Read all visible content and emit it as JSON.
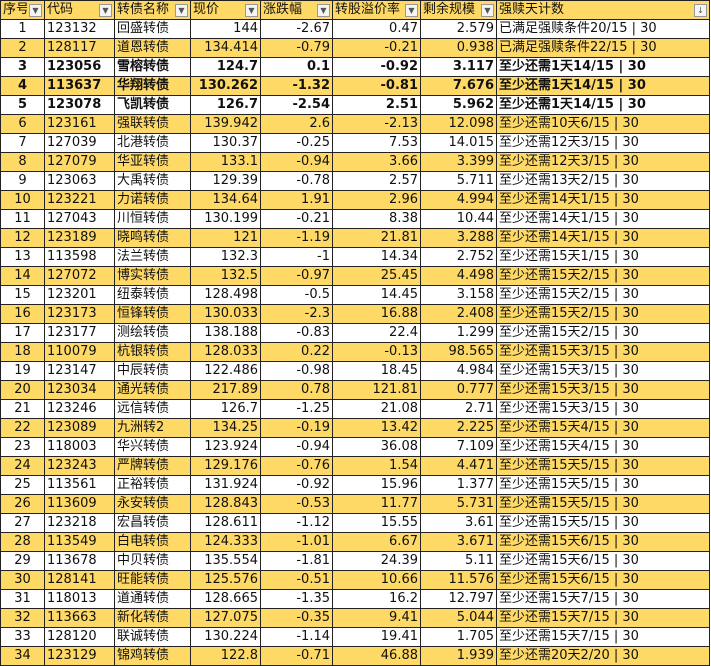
{
  "colors": {
    "header_bg": "#FFD966",
    "alt_row_bg": "#FFD966"
  },
  "headers": [
    "序号",
    "代码",
    "转债名称",
    "现价",
    "涨跌幅",
    "转股溢价率",
    "剩余规模",
    "强赎天计数"
  ],
  "filter_icons": [
    "dropdown-icon",
    "dropdown-icon",
    "dropdown-icon",
    "dropdown-icon",
    "dropdown-icon",
    "dropdown-icon",
    "dropdown-icon",
    "sort-filter-icon"
  ],
  "bold_rows": [
    3,
    4,
    5
  ],
  "rows": [
    [
      "1",
      "123132",
      "回盛转债",
      "144",
      "-2.67",
      "0.47",
      "2.579",
      "已满足强赎条件20/15 | 30"
    ],
    [
      "2",
      "128117",
      "道恩转债",
      "134.414",
      "-0.79",
      "-0.21",
      "0.938",
      "已满足强赎条件22/15 | 30"
    ],
    [
      "3",
      "123056",
      "雪榕转债",
      "124.7",
      "0.1",
      "-0.92",
      "3.117",
      "至少还需1天14/15 | 30"
    ],
    [
      "4",
      "113637",
      "华翔转债",
      "130.262",
      "-1.32",
      "-0.81",
      "7.676",
      "至少还需1天14/15 | 30"
    ],
    [
      "5",
      "123078",
      "飞凯转债",
      "126.7",
      "-2.54",
      "2.51",
      "5.962",
      "至少还需1天14/15 | 30"
    ],
    [
      "6",
      "123161",
      "强联转债",
      "139.942",
      "2.6",
      "-2.13",
      "12.098",
      "至少还需10天6/15 | 30"
    ],
    [
      "7",
      "127039",
      "北港转债",
      "130.37",
      "-0.25",
      "7.53",
      "14.015",
      "至少还需12天3/15 | 30"
    ],
    [
      "8",
      "127079",
      "华亚转债",
      "133.1",
      "-0.94",
      "3.66",
      "3.399",
      "至少还需12天3/15 | 30"
    ],
    [
      "9",
      "123063",
      "大禹转债",
      "129.39",
      "-0.78",
      "2.57",
      "5.711",
      "至少还需13天2/15 | 30"
    ],
    [
      "10",
      "123221",
      "力诺转债",
      "134.64",
      "1.91",
      "2.96",
      "4.994",
      "至少还需14天1/15 | 30"
    ],
    [
      "11",
      "127043",
      "川恒转债",
      "130.199",
      "-0.21",
      "8.38",
      "10.44",
      "至少还需14天1/15 | 30"
    ],
    [
      "12",
      "123189",
      "晓鸣转债",
      "121",
      "-1.19",
      "21.81",
      "3.288",
      "至少还需14天1/15 | 30"
    ],
    [
      "13",
      "113598",
      "法兰转债",
      "132.3",
      "-1",
      "14.34",
      "2.752",
      "至少还需15天1/15 | 30"
    ],
    [
      "14",
      "127072",
      "博实转债",
      "132.5",
      "-0.97",
      "25.45",
      "4.498",
      "至少还需15天2/15 | 30"
    ],
    [
      "15",
      "123201",
      "纽泰转债",
      "128.498",
      "-0.5",
      "14.45",
      "3.158",
      "至少还需15天2/15 | 30"
    ],
    [
      "16",
      "123173",
      "恒锋转债",
      "130.033",
      "-2.3",
      "16.88",
      "2.408",
      "至少还需15天2/15 | 30"
    ],
    [
      "17",
      "123177",
      "测绘转债",
      "138.188",
      "-0.83",
      "22.4",
      "1.299",
      "至少还需15天2/15 | 30"
    ],
    [
      "18",
      "110079",
      "杭银转债",
      "128.033",
      "0.22",
      "-0.13",
      "98.565",
      "至少还需15天3/15 | 30"
    ],
    [
      "19",
      "123147",
      "中辰转债",
      "122.486",
      "-0.98",
      "18.45",
      "4.984",
      "至少还需15天3/15 | 30"
    ],
    [
      "20",
      "123034",
      "通光转债",
      "217.89",
      "0.78",
      "121.81",
      "0.777",
      "至少还需15天3/15 | 30"
    ],
    [
      "21",
      "123246",
      "远信转债",
      "126.7",
      "-1.25",
      "21.08",
      "2.71",
      "至少还需15天3/15 | 30"
    ],
    [
      "22",
      "123089",
      "九洲转2",
      "134.25",
      "-0.19",
      "13.42",
      "2.225",
      "至少还需15天4/15 | 30"
    ],
    [
      "23",
      "118003",
      "华兴转债",
      "123.924",
      "-0.94",
      "36.08",
      "7.109",
      "至少还需15天4/15 | 30"
    ],
    [
      "24",
      "123243",
      "严牌转债",
      "129.176",
      "-0.76",
      "1.54",
      "4.471",
      "至少还需15天5/15 | 30"
    ],
    [
      "25",
      "113561",
      "正裕转债",
      "131.924",
      "-0.92",
      "15.96",
      "1.377",
      "至少还需15天5/15 | 30"
    ],
    [
      "26",
      "113609",
      "永安转债",
      "128.843",
      "-0.53",
      "11.77",
      "5.731",
      "至少还需15天5/15 | 30"
    ],
    [
      "27",
      "123218",
      "宏昌转债",
      "128.611",
      "-1.12",
      "15.55",
      "3.61",
      "至少还需15天5/15 | 30"
    ],
    [
      "28",
      "113549",
      "白电转债",
      "124.333",
      "-1.01",
      "6.67",
      "3.671",
      "至少还需15天6/15 | 30"
    ],
    [
      "29",
      "113678",
      "中贝转债",
      "135.554",
      "-1.81",
      "24.39",
      "5.11",
      "至少还需15天6/15 | 30"
    ],
    [
      "30",
      "128141",
      "旺能转债",
      "125.576",
      "-0.51",
      "10.66",
      "11.576",
      "至少还需15天6/15 | 30"
    ],
    [
      "31",
      "118013",
      "道通转债",
      "128.665",
      "-1.35",
      "16.2",
      "12.797",
      "至少还需15天7/15 | 30"
    ],
    [
      "32",
      "113663",
      "新化转债",
      "127.075",
      "-0.35",
      "9.41",
      "5.044",
      "至少还需15天7/15 | 30"
    ],
    [
      "33",
      "128120",
      "联诚转债",
      "130.224",
      "-1.14",
      "19.41",
      "1.705",
      "至少还需15天7/15 | 30"
    ],
    [
      "34",
      "123129",
      "锦鸡转债",
      "122.8",
      "-0.71",
      "46.88",
      "1.939",
      "至少还需20天2/20 | 30"
    ]
  ]
}
